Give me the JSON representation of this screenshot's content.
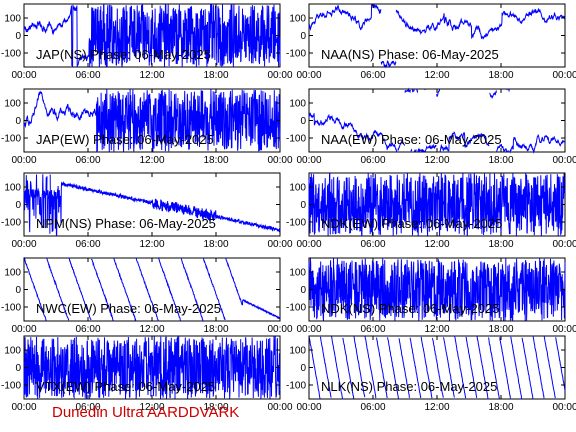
{
  "colors": {
    "trace": "#0000ff",
    "footer": "#cc0000"
  },
  "footer_label": "Dunedin Ultra AARDDVARK",
  "chart_data": [
    {
      "type": "line",
      "title": "JAP(NS) Phase: 06-May-2025",
      "pattern": "dense-after",
      "start": [
        0.0,
        40
      ],
      "break_hour": 6.1,
      "x": [
        0,
        6,
        12,
        18,
        24
      ],
      "x_tick_labels": [
        "00:00",
        "06:00",
        "12:00",
        "18:00",
        "00:00"
      ],
      "y_ticks": [
        100,
        0,
        -100
      ],
      "ylim": [
        -180,
        180
      ]
    },
    {
      "type": "line",
      "title": "NAA(NS) Phase: 06-May-2025",
      "pattern": "mixed",
      "start": [
        0.0,
        100
      ],
      "x": [
        0,
        6,
        12,
        18,
        24
      ],
      "x_tick_labels": [
        "00:00",
        "06:00",
        "12:00",
        "18:00",
        "00:00"
      ],
      "y_ticks": [
        100,
        0,
        -100
      ],
      "ylim": [
        -180,
        180
      ]
    },
    {
      "type": "line",
      "title": "JAP(EW) Phase: 06-May-2025",
      "pattern": "dense-after",
      "start": [
        0.0,
        -40
      ],
      "break_hour": 6.8,
      "x": [
        0,
        6,
        12,
        18,
        24
      ],
      "x_tick_labels": [
        "00:00",
        "06:00",
        "12:00",
        "18:00",
        "00:00"
      ],
      "y_ticks": [
        100,
        0,
        -100
      ],
      "ylim": [
        -180,
        180
      ]
    },
    {
      "type": "line",
      "title": "NAA(EW) Phase: 06-May-2025",
      "pattern": "mixed",
      "start": [
        0.0,
        10
      ],
      "x": [
        0,
        6,
        12,
        18,
        24
      ],
      "x_tick_labels": [
        "00:00",
        "06:00",
        "12:00",
        "18:00",
        "00:00"
      ],
      "y_ticks": [
        100,
        0,
        -100
      ],
      "ylim": [
        -180,
        180
      ]
    },
    {
      "type": "line",
      "title": "NPM(NS) Phase: 06-May-2025",
      "pattern": "slow-decay",
      "start": [
        0.0,
        150
      ],
      "x": [
        0,
        6,
        12,
        18,
        24
      ],
      "x_tick_labels": [
        "00:00",
        "06:00",
        "12:00",
        "18:00",
        "00:00"
      ],
      "y_ticks": [
        100,
        0,
        -100
      ],
      "ylim": [
        -180,
        180
      ]
    },
    {
      "type": "line",
      "title": "NDK(EW) Phase: 06-May-2025",
      "pattern": "noise",
      "start": [
        0.0,
        0
      ],
      "x": [
        0,
        6,
        12,
        18,
        24
      ],
      "x_tick_labels": [
        "00:00",
        "06:00",
        "12:00",
        "18:00",
        "00:00"
      ],
      "y_ticks": [
        100,
        0,
        -100
      ],
      "ylim": [
        -180,
        180
      ]
    },
    {
      "type": "line",
      "title": "NWC(EW) Phase: 06-May-2025",
      "pattern": "sawtooth",
      "start": [
        0.0,
        180
      ],
      "period_hours": 2.1,
      "x": [
        0,
        6,
        12,
        18,
        24
      ],
      "x_tick_labels": [
        "00:00",
        "06:00",
        "12:00",
        "18:00",
        "00:00"
      ],
      "y_ticks": [
        100,
        0,
        -100
      ],
      "ylim": [
        -180,
        180
      ]
    },
    {
      "type": "line",
      "title": "NDK(NS) Phase: 06-May-2025",
      "pattern": "noise",
      "start": [
        0.0,
        0
      ],
      "x": [
        0,
        6,
        12,
        18,
        24
      ],
      "x_tick_labels": [
        "00:00",
        "06:00",
        "12:00",
        "18:00",
        "00:00"
      ],
      "y_ticks": [
        100,
        0,
        -100
      ],
      "ylim": [
        -180,
        180
      ]
    },
    {
      "type": "line",
      "title": "VTX(EW) Phase: 06-May-2025",
      "pattern": "noise",
      "start": [
        0.0,
        0
      ],
      "x": [
        0,
        6,
        12,
        18,
        24
      ],
      "x_tick_labels": [
        "00:00",
        "06:00",
        "12:00",
        "18:00",
        "00:00"
      ],
      "y_ticks": [
        100,
        0,
        -100
      ],
      "ylim": [
        -180,
        180
      ]
    },
    {
      "type": "line",
      "title": "NLK(NS) Phase: 06-May-2025",
      "pattern": "sawtooth",
      "start": [
        0.0,
        180
      ],
      "period_hours": 1.05,
      "x": [
        0,
        6,
        12,
        18,
        24
      ],
      "x_tick_labels": [
        "00:00",
        "06:00",
        "12:00",
        "18:00",
        "00:00"
      ],
      "y_ticks": [
        100,
        0,
        -100
      ],
      "ylim": [
        -180,
        180
      ]
    }
  ]
}
